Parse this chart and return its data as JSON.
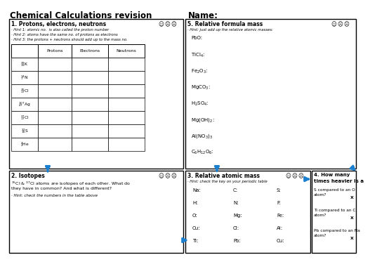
{
  "title": "Chemical Calculations revision",
  "name_label": "Name:",
  "bg_color": "#ffffff",
  "section1_title": "1. Protons, electrons, neutrons",
  "section1_hints": [
    "· Hint 1: atomic no.  is also called the proton number",
    "· Hint 2: atoms have the same no. of protons as electrons",
    "· Hint 3: the protons + neutrons should add up to the mass no."
  ],
  "table_headers": [
    "",
    "Protons",
    "Electrons",
    "Neutrons"
  ],
  "table_elements": [
    "$^{39}_{19}$K",
    "$^{14}_{7}$N",
    "$^{35}_{17}$Cl",
    "$^{107}_{47}$Ag",
    "$^{37}_{17}$Cl",
    "$^{32}_{16}$S",
    "$^{4}_{2}$He"
  ],
  "section2_title": "2. Isotopes",
  "section2_line1": "$^{35}$Cl & $^{37}$Cl atoms are isotopes of each other. What do",
  "section2_line2": "they have in common? And what is different?",
  "section2_hint": "· Hint: check the numbers in the table above",
  "section3_title": "3. Relative atomic mass",
  "section3_hint": "· Hint: check the key on your periodic table",
  "section3_col1": [
    "Na:",
    "H:",
    "O:",
    "Cu:",
    "Ti:"
  ],
  "section3_col2": [
    "C:",
    "N:",
    "Mg:",
    "Cl:",
    "Pb:"
  ],
  "section3_col3": [
    "S:",
    "F:",
    "Fe:",
    "Al:",
    "Cu:"
  ],
  "section4_title": "4. How many\ntimes heavier is a",
  "section4_items": [
    [
      "S compared to an O\natom?",
      "X"
    ],
    [
      "Ti compared to an C\natom?",
      "X"
    ],
    [
      "Pb compared to an Na\natom?",
      "X"
    ]
  ],
  "section5_title": "5. Relative formula mass",
  "section5_hint": "· Hint: just add up the relative atomic masses:",
  "section5_items": [
    "PbO:",
    "TiCl$_4$:",
    "Fe$_2$O$_3$:",
    "MgCO$_3$:",
    "H$_2$SO$_4$:",
    "Mg(OH)$_2$:",
    "Al(NO$_3$)$_3$",
    "C$_6$H$_{12}$O$_6$:"
  ],
  "arrow_color": "#1a7fce",
  "face_happy": "☺",
  "face_sad1": "☹",
  "face_sad2": "☹"
}
